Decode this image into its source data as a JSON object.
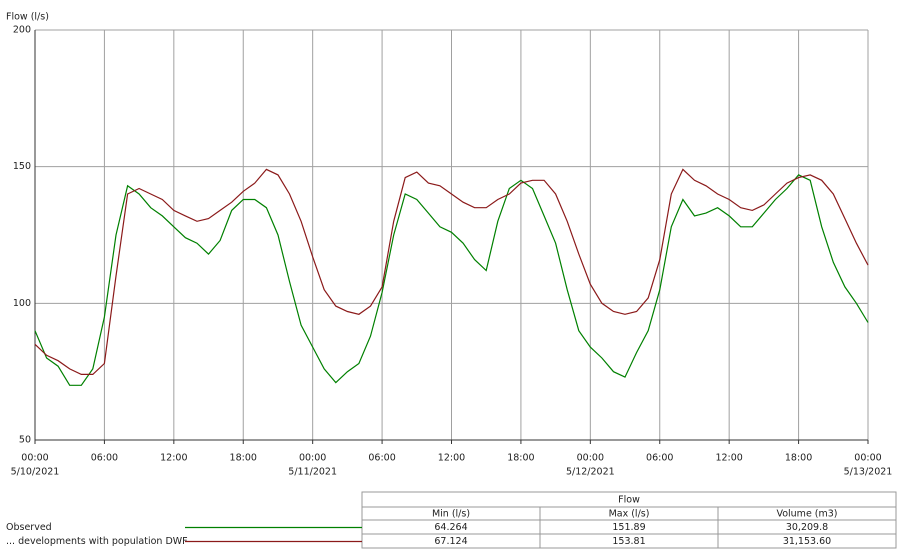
{
  "chart_data": {
    "type": "line",
    "y_label": "Flow (l/s)",
    "x": [
      "2021-05-10T00:00",
      "2021-05-10T01:00",
      "2021-05-10T02:00",
      "2021-05-10T03:00",
      "2021-05-10T04:00",
      "2021-05-10T05:00",
      "2021-05-10T06:00",
      "2021-05-10T07:00",
      "2021-05-10T08:00",
      "2021-05-10T09:00",
      "2021-05-10T10:00",
      "2021-05-10T11:00",
      "2021-05-10T12:00",
      "2021-05-10T13:00",
      "2021-05-10T14:00",
      "2021-05-10T15:00",
      "2021-05-10T16:00",
      "2021-05-10T17:00",
      "2021-05-10T18:00",
      "2021-05-10T19:00",
      "2021-05-10T20:00",
      "2021-05-10T21:00",
      "2021-05-10T22:00",
      "2021-05-10T23:00",
      "2021-05-11T00:00",
      "2021-05-11T01:00",
      "2021-05-11T02:00",
      "2021-05-11T03:00",
      "2021-05-11T04:00",
      "2021-05-11T05:00",
      "2021-05-11T06:00",
      "2021-05-11T07:00",
      "2021-05-11T08:00",
      "2021-05-11T09:00",
      "2021-05-11T10:00",
      "2021-05-11T11:00",
      "2021-05-11T12:00",
      "2021-05-11T13:00",
      "2021-05-11T14:00",
      "2021-05-11T15:00",
      "2021-05-11T16:00",
      "2021-05-11T17:00",
      "2021-05-11T18:00",
      "2021-05-11T19:00",
      "2021-05-11T20:00",
      "2021-05-11T21:00",
      "2021-05-11T22:00",
      "2021-05-11T23:00",
      "2021-05-12T00:00",
      "2021-05-12T01:00",
      "2021-05-12T02:00",
      "2021-05-12T03:00",
      "2021-05-12T04:00",
      "2021-05-12T05:00",
      "2021-05-12T06:00",
      "2021-05-12T07:00",
      "2021-05-12T08:00",
      "2021-05-12T09:00",
      "2021-05-12T10:00",
      "2021-05-12T11:00",
      "2021-05-12T12:00",
      "2021-05-12T13:00",
      "2021-05-12T14:00",
      "2021-05-12T15:00",
      "2021-05-12T16:00",
      "2021-05-12T17:00",
      "2021-05-12T18:00",
      "2021-05-12T19:00",
      "2021-05-12T20:00",
      "2021-05-12T21:00",
      "2021-05-12T22:00",
      "2021-05-12T23:00",
      "2021-05-13T00:00"
    ],
    "series": [
      {
        "name": "Observed",
        "color": "#008000",
        "values": [
          90,
          80,
          77,
          70,
          70,
          76,
          95,
          125,
          143,
          140,
          135,
          132,
          128,
          124,
          122,
          118,
          123,
          134,
          138,
          138,
          135,
          125,
          108,
          92,
          84,
          76,
          71,
          75,
          78,
          88,
          104,
          125,
          140,
          138,
          133,
          128,
          126,
          122,
          116,
          112,
          130,
          142,
          145,
          142,
          132,
          122,
          105,
          90,
          84,
          80,
          75,
          73,
          82,
          90,
          105,
          128,
          138,
          132,
          133,
          135,
          132,
          128,
          128,
          133,
          138,
          142,
          147,
          145,
          128,
          115,
          106,
          100,
          93
        ]
      },
      {
        "name": "... developments with population DWF",
        "color": "#8b1a1a",
        "values": [
          85,
          81,
          79,
          76,
          74,
          74,
          78,
          110,
          140,
          142,
          140,
          138,
          134,
          132,
          130,
          131,
          134,
          137,
          141,
          144,
          149,
          147,
          140,
          130,
          117,
          105,
          99,
          97,
          96,
          99,
          106,
          130,
          146,
          148,
          144,
          143,
          140,
          137,
          135,
          135,
          138,
          140,
          144,
          145,
          145,
          140,
          130,
          118,
          107,
          100,
          97,
          96,
          97,
          102,
          116,
          140,
          149,
          145,
          143,
          140,
          138,
          135,
          134,
          136,
          140,
          144,
          146,
          147,
          145,
          140,
          131,
          122,
          114
        ]
      }
    ],
    "xlim": [
      "2021-05-10T00:00",
      "2021-05-13T00:00"
    ],
    "xticks": [
      {
        "value": "2021-05-10T00:00",
        "label": "00:00"
      },
      {
        "value": "2021-05-10T06:00",
        "label": "06:00"
      },
      {
        "value": "2021-05-10T12:00",
        "label": "12:00"
      },
      {
        "value": "2021-05-10T18:00",
        "label": "18:00"
      },
      {
        "value": "2021-05-11T00:00",
        "label": "00:00"
      },
      {
        "value": "2021-05-11T06:00",
        "label": "06:00"
      },
      {
        "value": "2021-05-11T12:00",
        "label": "12:00"
      },
      {
        "value": "2021-05-11T18:00",
        "label": "18:00"
      },
      {
        "value": "2021-05-12T00:00",
        "label": "00:00"
      },
      {
        "value": "2021-05-12T06:00",
        "label": "06:00"
      },
      {
        "value": "2021-05-12T12:00",
        "label": "12:00"
      },
      {
        "value": "2021-05-12T18:00",
        "label": "18:00"
      },
      {
        "value": "2021-05-13T00:00",
        "label": "00:00"
      }
    ],
    "date_labels": [
      {
        "value": "2021-05-10T00:00",
        "label": "5/10/2021"
      },
      {
        "value": "2021-05-11T00:00",
        "label": "5/11/2021"
      },
      {
        "value": "2021-05-12T00:00",
        "label": "5/12/2021"
      },
      {
        "value": "2021-05-13T00:00",
        "label": "5/13/2021"
      }
    ],
    "ylim": [
      50,
      200
    ],
    "yticks": [
      50,
      100,
      150,
      200
    ],
    "grid": true
  },
  "table": {
    "title": "Flow",
    "columns": [
      "Min (l/s)",
      "Max (l/s)",
      "Volume (m3)"
    ],
    "rows": [
      [
        "64.264",
        "151.89",
        "30,209.8"
      ],
      [
        "67.124",
        "153.81",
        "31,153.60"
      ]
    ]
  }
}
